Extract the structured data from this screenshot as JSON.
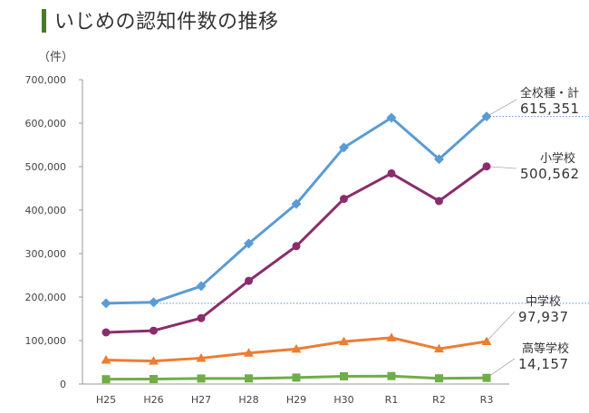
{
  "title": "いじめの認知件数の推移",
  "unit_label": "（件）",
  "colors": {
    "title_bar": "#4a7a2a",
    "axis": "#999999",
    "reference_line": "#5b8fd6"
  },
  "chart_data": {
    "type": "line",
    "title": "いじめの認知件数の推移",
    "xlabel": "",
    "ylabel": "（件）",
    "ylim": [
      0,
      700000
    ],
    "yticks": [
      0,
      100000,
      200000,
      300000,
      400000,
      500000,
      600000,
      700000
    ],
    "ytick_labels": [
      "0",
      "100,000",
      "200,000",
      "300,000",
      "400,000",
      "500,000",
      "600,000",
      "700,000"
    ],
    "categories": [
      "H25",
      "H26",
      "H27",
      "H28",
      "H29",
      "H30",
      "R1",
      "R2",
      "R3"
    ],
    "grid": false,
    "series": [
      {
        "name": "全校種・計",
        "color": "#5b9bd5",
        "marker": "diamond",
        "values": [
          185803,
          188072,
          225132,
          323143,
          414378,
          543933,
          612496,
          517163,
          615351
        ],
        "end_label_value": "615,351"
      },
      {
        "name": "小学校",
        "color": "#8b2d6b",
        "marker": "circle",
        "values": [
          118748,
          122734,
          151692,
          237256,
          317121,
          425844,
          484545,
          420897,
          500562
        ],
        "end_label_value": "500,562"
      },
      {
        "name": "中学校",
        "color": "#ed7d31",
        "marker": "triangle",
        "values": [
          55248,
          52971,
          59502,
          71309,
          80424,
          97704,
          106524,
          80877,
          97937
        ],
        "end_label_value": "97,937"
      },
      {
        "name": "高等学校",
        "color": "#70ad47",
        "marker": "square",
        "values": [
          11039,
          11404,
          12664,
          12874,
          14789,
          17709,
          18352,
          13126,
          14157
        ],
        "end_label_value": "14,157"
      }
    ],
    "reference_lines": [
      615351,
      185803
    ]
  }
}
